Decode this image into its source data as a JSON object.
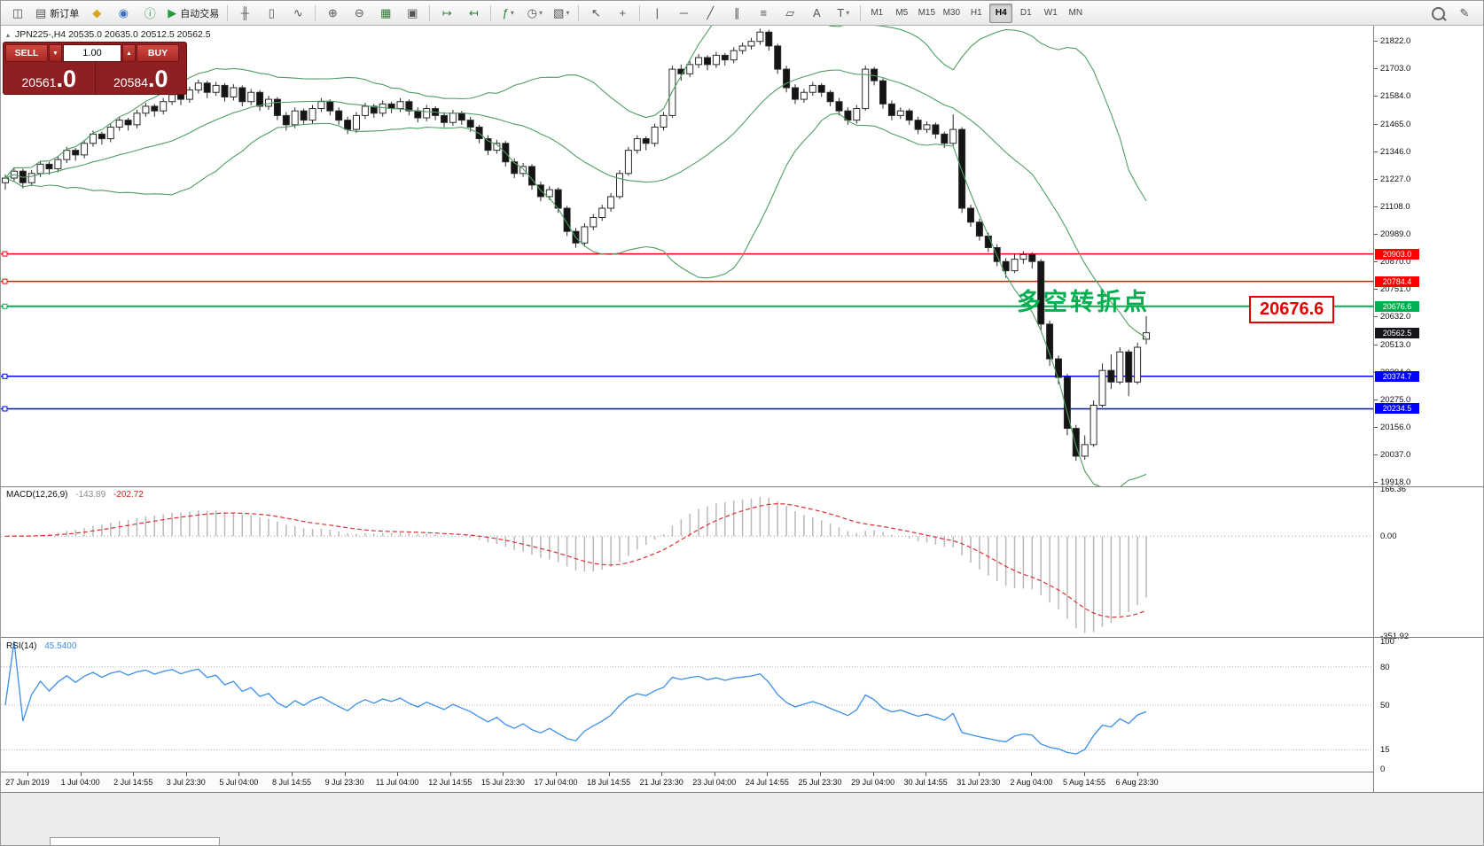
{
  "toolbar": {
    "items": [
      {
        "name": "new-chart-icon",
        "glyph": "◫"
      },
      {
        "name": "new-order-button",
        "glyph": "▤",
        "label": "新订单"
      },
      {
        "name": "chart-profiles-icon",
        "glyph": "◆",
        "color": "#d9a31a"
      },
      {
        "name": "data-window-icon",
        "glyph": "◉",
        "color": "#3f6fbf"
      },
      {
        "name": "info-icon",
        "glyph": "ⓘ",
        "color": "#2f8f46"
      },
      {
        "name": "autotrade-button",
        "glyph": "▶",
        "label": "自动交易",
        "color": "#1f9d3a"
      },
      {
        "sep": true
      },
      {
        "name": "bar-chart-icon",
        "glyph": "╫"
      },
      {
        "name": "candlestick-chart-icon",
        "glyph": "▯"
      },
      {
        "name": "line-chart-icon",
        "glyph": "∿"
      },
      {
        "sep": true
      },
      {
        "name": "zoom-in-icon",
        "glyph": "⊕"
      },
      {
        "name": "zoom-out-icon",
        "glyph": "⊖"
      },
      {
        "name": "grid-icon",
        "glyph": "▦",
        "color": "#2e7d32"
      },
      {
        "name": "tile-windows-icon",
        "glyph": "▣"
      },
      {
        "sep": true
      },
      {
        "name": "chart-shift-icon",
        "glyph": "↦",
        "color": "#2e7d32"
      },
      {
        "name": "auto-scroll-icon",
        "glyph": "↤",
        "color": "#2e7d32"
      },
      {
        "sep": true
      },
      {
        "name": "indicators-icon",
        "glyph": "ƒ",
        "color": "#2e7d32",
        "caret": true
      },
      {
        "name": "periods-icon",
        "glyph": "◷",
        "caret": true
      },
      {
        "name": "templates-icon",
        "glyph": "▧",
        "caret": true
      },
      {
        "sep": true
      },
      {
        "name": "cursor-icon",
        "glyph": "↖"
      },
      {
        "name": "crosshair-icon",
        "glyph": "+"
      },
      {
        "sep": true
      },
      {
        "name": "vertical-line-icon",
        "glyph": "|"
      },
      {
        "name": "horizontal-line-icon",
        "glyph": "─"
      },
      {
        "name": "trendline-icon",
        "glyph": "╱"
      },
      {
        "name": "channel-icon",
        "glyph": "∥"
      },
      {
        "name": "fibonacci-icon",
        "glyph": "≡"
      },
      {
        "name": "shapes-icon",
        "glyph": "▱"
      },
      {
        "name": "text-icon",
        "glyph": "A"
      },
      {
        "name": "text-label-icon",
        "glyph": "T",
        "caret": true
      },
      {
        "sep": true
      }
    ],
    "timeframes": [
      "M1",
      "M5",
      "M15",
      "M30",
      "H1",
      "H4",
      "D1",
      "W1",
      "MN"
    ],
    "active_timeframe": "H4",
    "right_items": [
      {
        "name": "search-icon",
        "mag": true
      },
      {
        "name": "pencil-icon",
        "glyph": "✎"
      }
    ]
  },
  "trade_panel": {
    "sell_label": "SELL",
    "buy_label": "BUY",
    "volume": "1.00",
    "sell_price": "20561",
    "sell_price_frac": ".0",
    "buy_price": "20584",
    "buy_price_frac": ".0"
  },
  "chart_header": {
    "icon": "▴",
    "symbol": "JPN225-,H4",
    "ohlc": "20535.0 20635.0 20512.5 20562.5"
  },
  "annotation": {
    "text": "多空转折点",
    "color": "#00b050"
  },
  "price_label_box": {
    "text": "20676.6",
    "color": "#e60000"
  },
  "chart_data": {
    "type": "candlestick",
    "symbol": "JPN225-",
    "timeframe": "H4",
    "ohlc_header": {
      "open": 20535.0,
      "high": 20635.0,
      "low": 20512.5,
      "close": 20562.5
    },
    "price_axis_labels": [
      21822.0,
      21703.0,
      21584.0,
      21465.0,
      21346.0,
      21227.0,
      21108.0,
      20989.0,
      20870.0,
      20751.0,
      20632.0,
      20513.0,
      20394.0,
      20275.0,
      20156.0,
      20037.0,
      19918.0
    ],
    "hlines": [
      {
        "price": 20903.0,
        "color": "#ff0000",
        "label": "20903.0"
      },
      {
        "price": 20784.4,
        "color": "#ff0000",
        "label": "20784.4"
      },
      {
        "price": 20676.6,
        "color": "#00b050",
        "label": "20676.6",
        "emphasis": true
      },
      {
        "price": 20374.7,
        "color": "#0000ff",
        "label": "20374.7"
      },
      {
        "price": 20234.5,
        "color": "#0000ff",
        "label": "20234.5"
      }
    ],
    "current_price": {
      "value": 20562.5,
      "label": "20562.5",
      "color": "#16161d"
    },
    "bollinger": {
      "period": 20,
      "deviation": 2,
      "color": "#4f9e63"
    },
    "candles": [
      [
        21210,
        21245,
        21180,
        21230
      ],
      [
        21230,
        21275,
        21215,
        21260
      ],
      [
        21260,
        21270,
        21185,
        21210
      ],
      [
        21210,
        21265,
        21195,
        21250
      ],
      [
        21250,
        21305,
        21235,
        21290
      ],
      [
        21290,
        21300,
        21245,
        21270
      ],
      [
        21270,
        21325,
        21255,
        21310
      ],
      [
        21310,
        21365,
        21295,
        21350
      ],
      [
        21350,
        21360,
        21305,
        21330
      ],
      [
        21330,
        21395,
        21315,
        21380
      ],
      [
        21380,
        21435,
        21365,
        21420
      ],
      [
        21420,
        21430,
        21375,
        21400
      ],
      [
        21400,
        21465,
        21385,
        21450
      ],
      [
        21450,
        21495,
        21435,
        21480
      ],
      [
        21480,
        21490,
        21435,
        21460
      ],
      [
        21460,
        21525,
        21445,
        21510
      ],
      [
        21510,
        21555,
        21495,
        21540
      ],
      [
        21540,
        21550,
        21495,
        21520
      ],
      [
        21520,
        21575,
        21505,
        21560
      ],
      [
        21560,
        21605,
        21545,
        21590
      ],
      [
        21590,
        21600,
        21545,
        21570
      ],
      [
        21570,
        21625,
        21555,
        21610
      ],
      [
        21610,
        21655,
        21595,
        21640
      ],
      [
        21640,
        21650,
        21575,
        21600
      ],
      [
        21600,
        21645,
        21585,
        21630
      ],
      [
        21630,
        21640,
        21560,
        21580
      ],
      [
        21580,
        21635,
        21565,
        21620
      ],
      [
        21620,
        21630,
        21540,
        21560
      ],
      [
        21560,
        21615,
        21545,
        21600
      ],
      [
        21600,
        21610,
        21520,
        21540
      ],
      [
        21540,
        21585,
        21525,
        21570
      ],
      [
        21570,
        21580,
        21480,
        21500
      ],
      [
        21500,
        21515,
        21435,
        21460
      ],
      [
        21460,
        21535,
        21445,
        21520
      ],
      [
        21520,
        21530,
        21460,
        21480
      ],
      [
        21480,
        21545,
        21465,
        21530
      ],
      [
        21530,
        21575,
        21515,
        21560
      ],
      [
        21560,
        21570,
        21500,
        21520
      ],
      [
        21520,
        21535,
        21460,
        21480
      ],
      [
        21480,
        21495,
        21420,
        21440
      ],
      [
        21440,
        21515,
        21425,
        21500
      ],
      [
        21500,
        21555,
        21485,
        21540
      ],
      [
        21540,
        21550,
        21490,
        21510
      ],
      [
        21510,
        21565,
        21495,
        21550
      ],
      [
        21550,
        21560,
        21510,
        21530
      ],
      [
        21530,
        21575,
        21515,
        21560
      ],
      [
        21560,
        21570,
        21500,
        21520
      ],
      [
        21520,
        21535,
        21470,
        21490
      ],
      [
        21490,
        21545,
        21475,
        21530
      ],
      [
        21530,
        21540,
        21480,
        21500
      ],
      [
        21500,
        21515,
        21450,
        21470
      ],
      [
        21470,
        21525,
        21455,
        21510
      ],
      [
        21510,
        21520,
        21460,
        21480
      ],
      [
        21480,
        21495,
        21430,
        21450
      ],
      [
        21450,
        21460,
        21380,
        21400
      ],
      [
        21400,
        21415,
        21330,
        21350
      ],
      [
        21350,
        21395,
        21335,
        21380
      ],
      [
        21380,
        21390,
        21280,
        21300
      ],
      [
        21300,
        21315,
        21230,
        21250
      ],
      [
        21250,
        21295,
        21235,
        21280
      ],
      [
        21280,
        21290,
        21180,
        21200
      ],
      [
        21200,
        21215,
        21130,
        21150
      ],
      [
        21150,
        21195,
        21135,
        21180
      ],
      [
        21180,
        21190,
        21080,
        21100
      ],
      [
        21100,
        21110,
        20980,
        21000
      ],
      [
        21000,
        21015,
        20930,
        20950
      ],
      [
        20950,
        21035,
        20935,
        21020
      ],
      [
        21020,
        21075,
        21005,
        21060
      ],
      [
        21060,
        21115,
        21045,
        21100
      ],
      [
        21100,
        21165,
        21085,
        21150
      ],
      [
        21150,
        21265,
        21140,
        21250
      ],
      [
        21250,
        21365,
        21240,
        21350
      ],
      [
        21350,
        21415,
        21335,
        21400
      ],
      [
        21400,
        21410,
        21350,
        21380
      ],
      [
        21380,
        21465,
        21365,
        21450
      ],
      [
        21450,
        21515,
        21435,
        21500
      ],
      [
        21500,
        21715,
        21490,
        21700
      ],
      [
        21700,
        21720,
        21650,
        21680
      ],
      [
        21680,
        21735,
        21665,
        21720
      ],
      [
        21720,
        21765,
        21705,
        21750
      ],
      [
        21750,
        21760,
        21695,
        21720
      ],
      [
        21720,
        21775,
        21705,
        21760
      ],
      [
        21760,
        21770,
        21715,
        21740
      ],
      [
        21740,
        21795,
        21725,
        21780
      ],
      [
        21780,
        21815,
        21765,
        21800
      ],
      [
        21800,
        21835,
        21785,
        21820
      ],
      [
        21820,
        21875,
        21805,
        21860
      ],
      [
        21860,
        21870,
        21780,
        21800
      ],
      [
        21800,
        21810,
        21680,
        21700
      ],
      [
        21700,
        21715,
        21600,
        21620
      ],
      [
        21620,
        21635,
        21550,
        21570
      ],
      [
        21570,
        21615,
        21555,
        21600
      ],
      [
        21600,
        21645,
        21585,
        21630
      ],
      [
        21630,
        21640,
        21580,
        21600
      ],
      [
        21600,
        21610,
        21540,
        21560
      ],
      [
        21560,
        21575,
        21500,
        21520
      ],
      [
        21520,
        21535,
        21460,
        21480
      ],
      [
        21480,
        21545,
        21465,
        21530
      ],
      [
        21530,
        21715,
        21520,
        21700
      ],
      [
        21700,
        21710,
        21630,
        21650
      ],
      [
        21650,
        21660,
        21530,
        21550
      ],
      [
        21550,
        21565,
        21480,
        21500
      ],
      [
        21500,
        21535,
        21485,
        21520
      ],
      [
        21520,
        21530,
        21460,
        21480
      ],
      [
        21480,
        21495,
        21420,
        21440
      ],
      [
        21440,
        21475,
        21425,
        21460
      ],
      [
        21460,
        21470,
        21400,
        21420
      ],
      [
        21420,
        21430,
        21360,
        21380
      ],
      [
        21380,
        21505,
        21370,
        21440
      ],
      [
        21440,
        21450,
        21080,
        21100
      ],
      [
        21100,
        21115,
        21020,
        21040
      ],
      [
        21040,
        21055,
        20960,
        20980
      ],
      [
        20980,
        20995,
        20910,
        20930
      ],
      [
        20930,
        20945,
        20850,
        20870
      ],
      [
        20870,
        20885,
        20800,
        20830
      ],
      [
        20830,
        20905,
        20820,
        20880
      ],
      [
        20880,
        20915,
        20860,
        20900
      ],
      [
        20900,
        20910,
        20840,
        20870
      ],
      [
        20870,
        20880,
        20570,
        20600
      ],
      [
        20600,
        20615,
        20420,
        20450
      ],
      [
        20450,
        20465,
        20340,
        20370
      ],
      [
        20370,
        20385,
        20120,
        20150
      ],
      [
        20150,
        20165,
        20010,
        20030
      ],
      [
        20030,
        20120,
        20015,
        20080
      ],
      [
        20080,
        20270,
        20070,
        20250
      ],
      [
        20250,
        20430,
        20240,
        20400
      ],
      [
        20400,
        20470,
        20320,
        20350
      ],
      [
        20350,
        20500,
        20340,
        20480
      ],
      [
        20480,
        20490,
        20290,
        20350
      ],
      [
        20350,
        20520,
        20340,
        20500
      ],
      [
        20535,
        20635,
        20512.5,
        20562.5
      ]
    ],
    "macd": {
      "label": "MACD(12,26,9)",
      "value": "-143.89",
      "signal_value": "-202.72",
      "axis_max": 166.36,
      "axis_zero": "0.00",
      "axis_min": -351.92,
      "histogram_color": "#b8b8b8",
      "signal_color": "#e03030"
    },
    "rsi": {
      "label": "RSI(14)",
      "value": "45.5400",
      "color": "#3a8fe8",
      "levels": [
        80,
        50,
        15
      ],
      "axis_labels": [
        100,
        80,
        50,
        15,
        0
      ]
    },
    "time_labels": [
      "27 Jun 2019",
      "1 Jul 04:00",
      "2 Jul 14:55",
      "3 Jul 23:30",
      "5 Jul 04:00",
      "8 Jul 14:55",
      "9 Jul 23:30",
      "11 Jul 04:00",
      "12 Jul 14:55",
      "15 Jul 23:30",
      "17 Jul 04:00",
      "18 Jul 14:55",
      "21 Jul 23:30",
      "23 Jul 04:00",
      "24 Jul 14:55",
      "25 Jul 23:30",
      "29 Jul 04:00",
      "30 Jul 14:55",
      "31 Jul 23:30",
      "2 Aug 04:00",
      "5 Aug 14:55",
      "6 Aug 23:30"
    ]
  }
}
